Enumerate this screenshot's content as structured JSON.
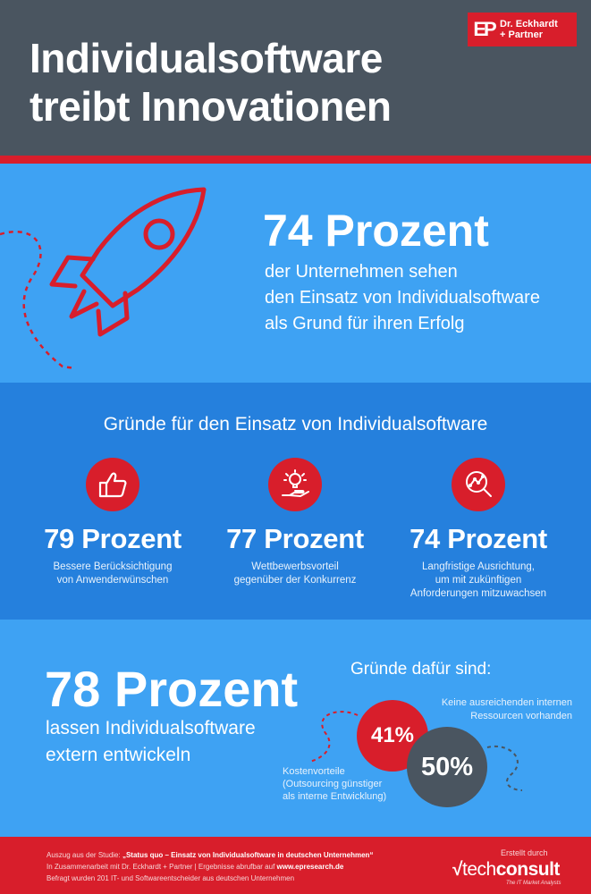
{
  "header": {
    "title": "Individualsoftware\ntreibt Innovationen",
    "logo_mark": "EP",
    "logo_text": "Dr. Eckhardt\n+ Partner"
  },
  "hero": {
    "figure": "74 Prozent",
    "text": "der Unternehmen sehen\nden Einsatz von Individualsoftware\nals Grund für ihren Erfolg",
    "icon": "rocket-icon"
  },
  "reasons": {
    "title": "Gründe für den Einsatz von Individualsoftware",
    "items": [
      {
        "icon": "thumbs-up-icon",
        "figure": "79 Prozent",
        "text": "Bessere Berücksichtigung\nvon Anwenderwünschen"
      },
      {
        "icon": "lightbulb-hand-icon",
        "figure": "77 Prozent",
        "text": "Wettbewerbsvorteil\ngegenüber der Konkurrenz"
      },
      {
        "icon": "analytics-magnifier-icon",
        "figure": "74 Prozent",
        "text": "Langfristige Ausrichtung,\num mit zukünftigen\nAnforderungen mitzuwachsen"
      }
    ]
  },
  "external": {
    "figure": "78 Prozent",
    "text": "lassen Individualsoftware\nextern entwickeln",
    "reasons_title": "Gründe dafür sind:",
    "bubble_red": "41%",
    "bubble_dark": "50%",
    "note_resources": "Keine ausreichenden internen\nRessourcen vorhanden",
    "note_costs": "Kostenvorteile\n(Outsourcing günstiger\nals interne Entwicklung)"
  },
  "footer": {
    "line1_prefix": "Auszug aus der Studie: ",
    "line1_study": "„Status quo – Einsatz von Individualsoftware in deutschen Unternehmen“",
    "line2_prefix": "In Zusammenarbeit mit Dr. Eckhardt + Partner | Ergebnisse abrufbar auf ",
    "line2_url": "www.epresearch.de",
    "line3": "Befragt wurden 201 IT- und Softwareentscheider aus deutschen Unternehmen",
    "made_by": "Erstellt durch",
    "brand_light": "tech",
    "brand_bold": "consult",
    "brand_tagline": "The IT Market Analysts"
  },
  "colors": {
    "header_bg": "#4a5560",
    "accent_red": "#d81e2b",
    "light_blue": "#3ea2f3",
    "mid_blue": "#2580dd"
  }
}
